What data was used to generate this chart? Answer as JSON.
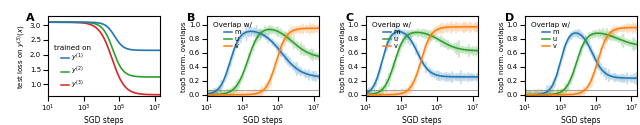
{
  "fig_width": 6.4,
  "fig_height": 1.25,
  "dpi": 100,
  "colors": {
    "blue": "#1f77b4",
    "green": "#2ca02c",
    "red": "#d62728",
    "orange": "#ff7f0e"
  },
  "panel_A": {
    "ylabel": "test loss on $y^{(3)}(x)$",
    "xlabel": "SGD steps",
    "legend_title": "trained on",
    "legend_entries": [
      "$y^{(1)}$",
      "$y^{(2)}$",
      "$y^{(3)}$"
    ],
    "xlim_log": [
      1.0,
      7.3
    ],
    "ylim": [
      0.6,
      3.3
    ],
    "yticks": [
      1.0,
      1.5,
      2.0,
      2.5,
      3.0
    ]
  },
  "panel_BCD": {
    "ylabel": "top5 norm. overlaps",
    "xlabel": "SGD steps",
    "legend_title": "Overlap w/",
    "legend_entries": [
      "m",
      "u",
      "v"
    ],
    "xlim_log": [
      1.0,
      7.3
    ],
    "ylim": [
      -0.02,
      1.12
    ],
    "yticks": [
      0.0,
      0.2,
      0.4,
      0.6,
      0.8,
      1.0
    ],
    "hline_y": 0.065
  }
}
